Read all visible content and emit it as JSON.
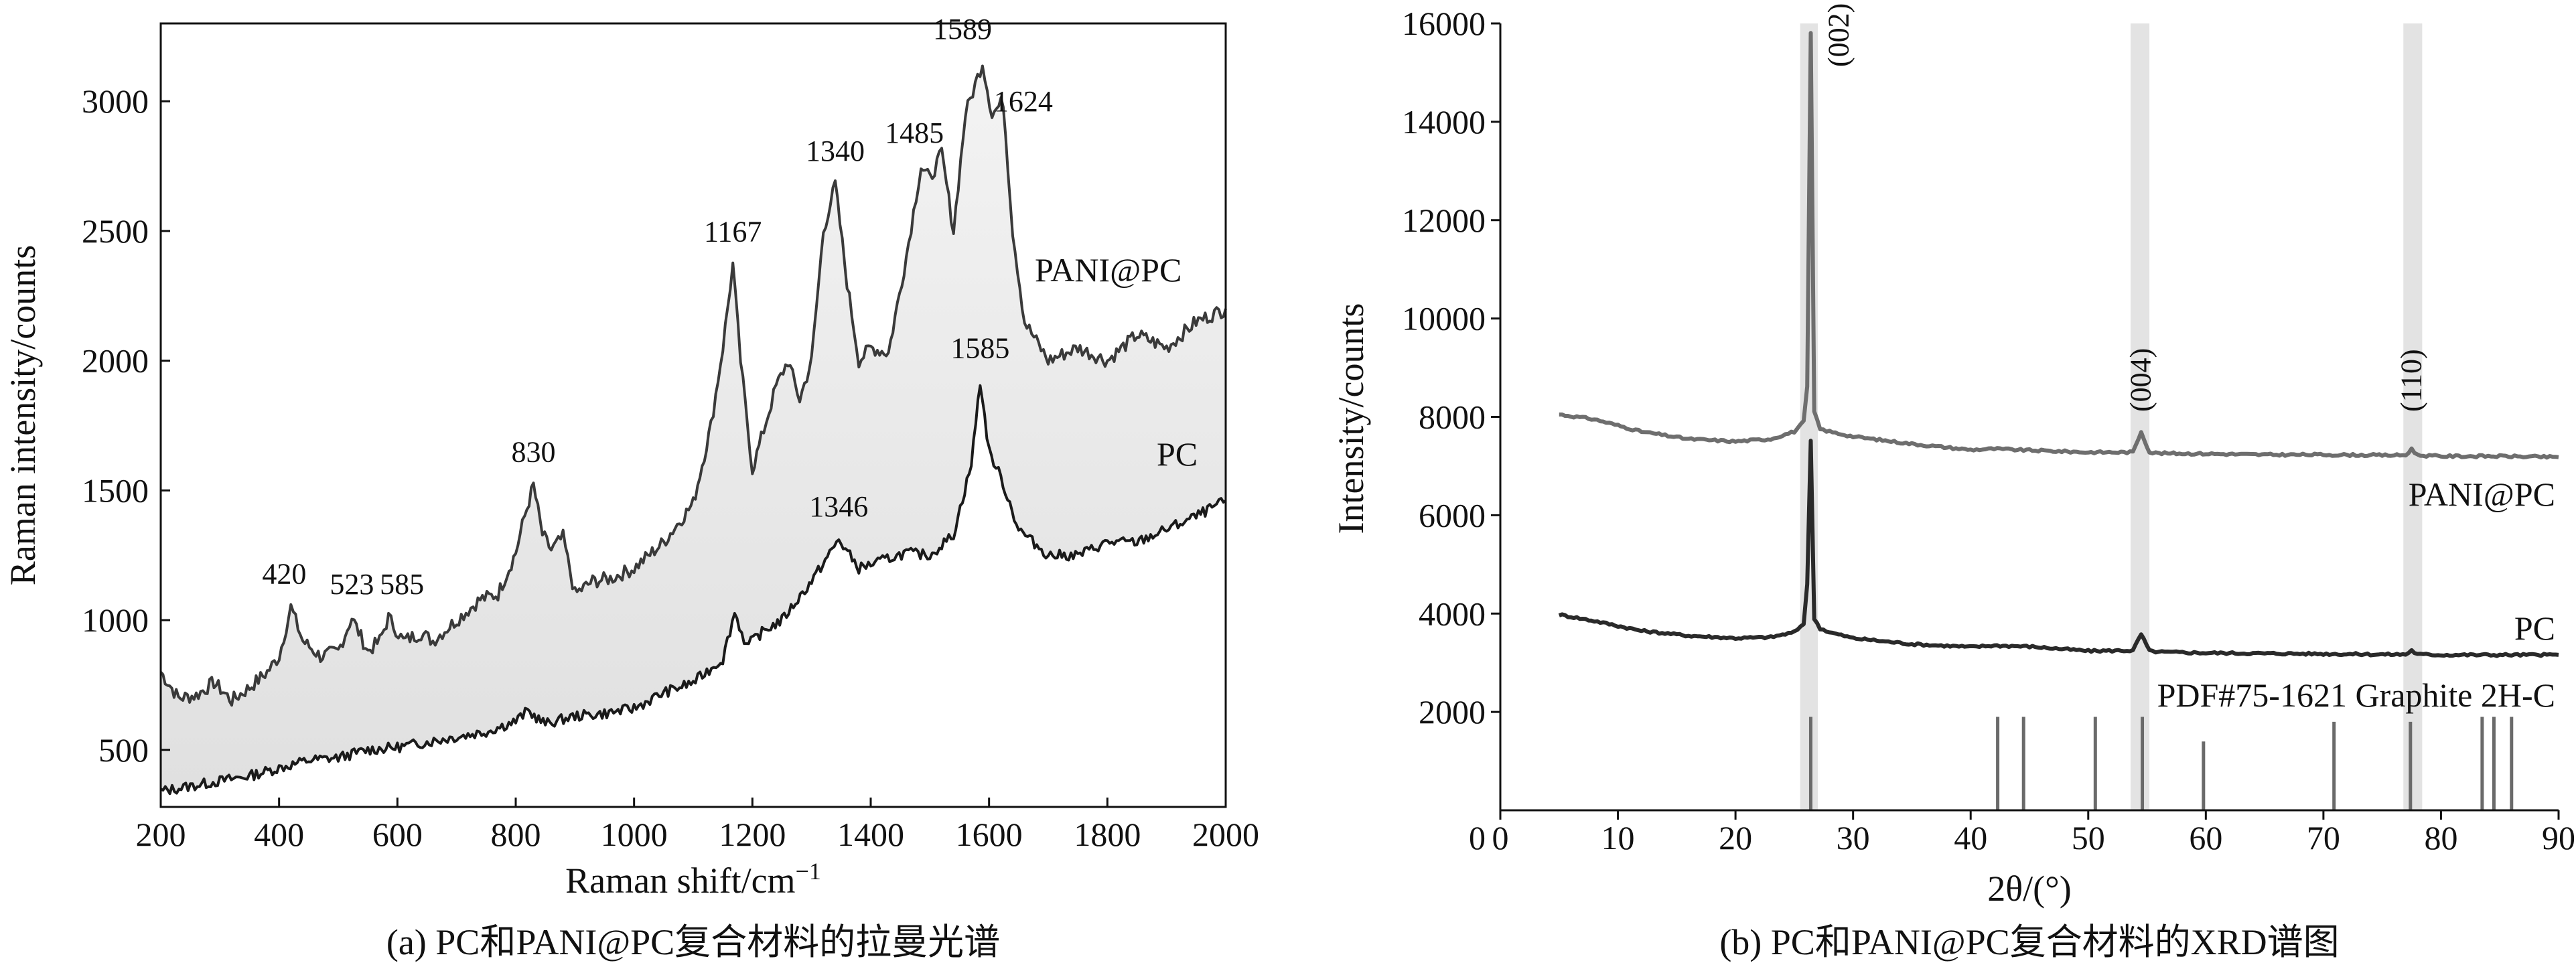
{
  "chart_data": [
    {
      "type": "line",
      "caption": "(a) PC和PANI@PC复合材料的拉曼光谱",
      "xlabel": "Raman shift/cm",
      "xlabel_sup": "−1",
      "ylabel": "Raman intensity/counts",
      "xlim": [
        200,
        2000
      ],
      "ylim": [
        280,
        3300
      ],
      "xticks": [
        200,
        400,
        600,
        800,
        1000,
        1200,
        1400,
        1600,
        1800,
        2000
      ],
      "yticks": [
        500,
        1000,
        1500,
        2000,
        2500,
        3000
      ],
      "series": [
        {
          "name": "PANI@PC",
          "color": "#3a3a3a",
          "x": [
            200,
            230,
            260,
            290,
            320,
            350,
            380,
            400,
            420,
            440,
            470,
            500,
            523,
            550,
            570,
            585,
            610,
            640,
            660,
            700,
            740,
            770,
            800,
            815,
            830,
            845,
            860,
            880,
            900,
            930,
            960,
            1000,
            1050,
            1100,
            1130,
            1150,
            1167,
            1180,
            1200,
            1215,
            1240,
            1260,
            1280,
            1300,
            1320,
            1340,
            1360,
            1380,
            1400,
            1430,
            1460,
            1485,
            1500,
            1520,
            1540,
            1560,
            1589,
            1605,
            1624,
            1640,
            1660,
            1700,
            1750,
            1800,
            1850,
            1900,
            1950,
            2000
          ],
          "y": [
            800,
            700,
            710,
            760,
            690,
            740,
            800,
            860,
            1050,
            920,
            860,
            880,
            1010,
            880,
            920,
            1010,
            920,
            950,
            920,
            1000,
            1080,
            1100,
            1260,
            1400,
            1520,
            1330,
            1270,
            1320,
            1100,
            1150,
            1160,
            1200,
            1300,
            1450,
            1750,
            2050,
            2370,
            2000,
            1580,
            1700,
            1900,
            2000,
            1850,
            2000,
            2500,
            2680,
            2300,
            2000,
            2050,
            2030,
            2400,
            2750,
            2700,
            2800,
            2500,
            2950,
            3150,
            2950,
            3000,
            2500,
            2150,
            2000,
            2050,
            2000,
            2100,
            2050,
            2150,
            2200
          ]
        },
        {
          "name": "PC",
          "color": "#1a1a1a",
          "x": [
            200,
            250,
            300,
            350,
            400,
            450,
            500,
            550,
            600,
            650,
            700,
            750,
            800,
            820,
            850,
            900,
            950,
            1000,
            1050,
            1100,
            1150,
            1170,
            1190,
            1220,
            1250,
            1300,
            1346,
            1380,
            1420,
            1460,
            1500,
            1540,
            1570,
            1585,
            1600,
            1620,
            1650,
            1700,
            1750,
            1800,
            1850,
            1900,
            1950,
            2000
          ],
          "y": [
            340,
            360,
            380,
            400,
            430,
            460,
            470,
            500,
            510,
            530,
            550,
            570,
            610,
            650,
            600,
            630,
            640,
            660,
            720,
            760,
            850,
            1030,
            900,
            960,
            1000,
            1150,
            1310,
            1200,
            1230,
            1260,
            1250,
            1330,
            1600,
            1920,
            1650,
            1550,
            1350,
            1250,
            1250,
            1300,
            1300,
            1350,
            1400,
            1460
          ]
        }
      ],
      "annotations": [
        {
          "text": "420",
          "x": 420,
          "y": 1050
        },
        {
          "text": "523",
          "x": 523,
          "y": 1010
        },
        {
          "text": "585",
          "x": 585,
          "y": 1010
        },
        {
          "text": "830",
          "x": 830,
          "y": 1520
        },
        {
          "text": "1167",
          "x": 1167,
          "y": 2370
        },
        {
          "text": "1340",
          "x": 1340,
          "y": 2680
        },
        {
          "text": "1485",
          "x": 1485,
          "y": 2750
        },
        {
          "text": "1589",
          "x": 1589,
          "y": 3150
        },
        {
          "text": "1624",
          "x": 1624,
          "y": 3000
        },
        {
          "text": "1346",
          "x": 1346,
          "y": 1310
        },
        {
          "text": "1585",
          "x": 1585,
          "y": 1920
        }
      ],
      "fill_between": {
        "color": "#e0e0e0"
      }
    },
    {
      "type": "line",
      "caption": "(b) PC和PANI@PC复合材料的XRD谱图",
      "xlabel": "2θ/(°)",
      "ylabel": "Intensity/counts",
      "xlim": [
        0,
        90
      ],
      "ylim": [
        0,
        16000
      ],
      "xticks": [
        0,
        10,
        20,
        30,
        40,
        50,
        60,
        70,
        80,
        90
      ],
      "yticks": [
        2000,
        4000,
        6000,
        8000,
        10000,
        12000,
        14000,
        16000
      ],
      "highlight_bands": [
        [
          25.5,
          27.0
        ],
        [
          53.6,
          55.2
        ],
        [
          76.8,
          78.4
        ]
      ],
      "series": [
        {
          "name": "PANI@PC",
          "color": "#6e6e6e",
          "x": [
            5,
            8,
            12,
            16,
            20,
            23,
            25,
            25.8,
            26.1,
            26.4,
            26.7,
            27.2,
            28,
            30,
            35,
            40,
            42,
            45,
            50,
            53.8,
            54.5,
            55.2,
            56,
            60,
            65,
            70,
            75,
            77,
            77.5,
            78,
            80,
            85,
            90
          ],
          "y": [
            8050,
            7950,
            7700,
            7550,
            7500,
            7550,
            7700,
            7900,
            8600,
            15800,
            8100,
            7750,
            7700,
            7600,
            7450,
            7330,
            7350,
            7320,
            7280,
            7280,
            7700,
            7280,
            7260,
            7250,
            7230,
            7230,
            7220,
            7220,
            7350,
            7220,
            7200,
            7200,
            7180
          ]
        },
        {
          "name": "PC",
          "color": "#2a2a2a",
          "x": [
            5,
            8,
            12,
            16,
            20,
            23,
            25,
            25.8,
            26.1,
            26.4,
            26.7,
            27.2,
            28,
            30,
            35,
            40,
            42,
            45,
            50,
            53.8,
            54.5,
            55.2,
            56,
            60,
            65,
            70,
            75,
            77,
            77.5,
            78,
            80,
            85,
            90
          ],
          "y": [
            3980,
            3850,
            3650,
            3550,
            3500,
            3520,
            3620,
            3800,
            4600,
            7500,
            3900,
            3700,
            3620,
            3500,
            3380,
            3320,
            3350,
            3330,
            3240,
            3250,
            3580,
            3240,
            3220,
            3200,
            3190,
            3180,
            3170,
            3170,
            3250,
            3170,
            3160,
            3160,
            3160
          ]
        }
      ],
      "reference_sticks": {
        "label": "PDF#75-1621 Graphite 2H-C",
        "color": "#6a6a6a",
        "positions": [
          26.4,
          42.3,
          44.5,
          50.6,
          54.6,
          59.8,
          70.9,
          77.4,
          83.5,
          84.5,
          86.0
        ],
        "heights": [
          1900,
          1900,
          1900,
          1900,
          1900,
          1400,
          1800,
          1800,
          1900,
          1900,
          1900
        ]
      },
      "annotations": [
        {
          "text": "(002)",
          "x": 26.3,
          "rotated": true
        },
        {
          "text": "(004)",
          "x": 54.6,
          "rotated": true
        },
        {
          "text": "(110)",
          "x": 77.6,
          "rotated": true
        }
      ]
    }
  ]
}
